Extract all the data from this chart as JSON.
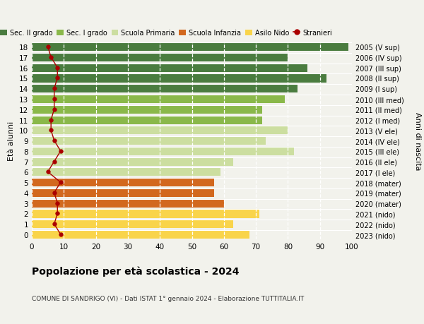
{
  "ages": [
    0,
    1,
    2,
    3,
    4,
    5,
    6,
    7,
    8,
    9,
    10,
    11,
    12,
    13,
    14,
    15,
    16,
    17,
    18
  ],
  "right_labels": [
    "2023 (nido)",
    "2022 (nido)",
    "2021 (nido)",
    "2020 (mater)",
    "2019 (mater)",
    "2018 (mater)",
    "2017 (I ele)",
    "2016 (II ele)",
    "2015 (III ele)",
    "2014 (IV ele)",
    "2013 (V ele)",
    "2012 (I med)",
    "2011 (II med)",
    "2010 (III med)",
    "2009 (I sup)",
    "2008 (II sup)",
    "2007 (III sup)",
    "2006 (IV sup)",
    "2005 (V sup)"
  ],
  "bar_values": [
    68,
    63,
    71,
    60,
    57,
    57,
    59,
    63,
    82,
    73,
    80,
    72,
    72,
    79,
    83,
    92,
    86,
    80,
    99
  ],
  "stranieri_values": [
    9,
    7,
    8,
    8,
    7,
    9,
    5,
    7,
    9,
    7,
    6,
    6,
    7,
    7,
    7,
    8,
    8,
    6,
    5
  ],
  "bar_colors": [
    "#f9d44a",
    "#f9d44a",
    "#f9d44a",
    "#d2681e",
    "#d2681e",
    "#d2681e",
    "#ccdea0",
    "#ccdea0",
    "#ccdea0",
    "#ccdea0",
    "#ccdea0",
    "#8ab84a",
    "#8ab84a",
    "#8ab84a",
    "#4a7c3f",
    "#4a7c3f",
    "#4a7c3f",
    "#4a7c3f",
    "#4a7c3f"
  ],
  "legend_labels": [
    "Sec. II grado",
    "Sec. I grado",
    "Scuola Primaria",
    "Scuola Infanzia",
    "Asilo Nido",
    "Stranieri"
  ],
  "legend_colors": [
    "#4a7c3f",
    "#8ab84a",
    "#ccdea0",
    "#d2681e",
    "#f9d44a",
    "#cc0000"
  ],
  "title": "Popolazione per età scolastica - 2024",
  "subtitle": "COMUNE DI SANDRIGO (VI) - Dati ISTAT 1° gennaio 2024 - Elaborazione TUTTITALIA.IT",
  "ylabel_left": "Età alunni",
  "ylabel_right": "Anni di nascita",
  "xlim": [
    0,
    100
  ],
  "xticks": [
    0,
    10,
    20,
    30,
    40,
    50,
    60,
    70,
    80,
    90,
    100
  ],
  "background_color": "#f2f2ec",
  "stranieri_color": "#aa0000",
  "stranieri_markersize": 4,
  "stranieri_linewidth": 1.0
}
